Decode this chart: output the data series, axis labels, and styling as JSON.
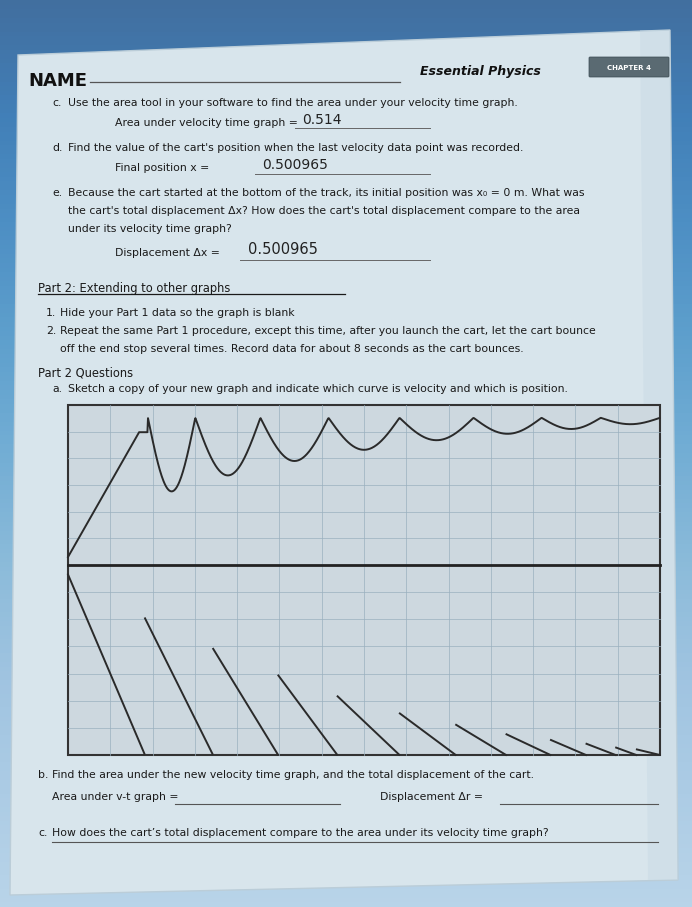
{
  "bg_top_color": "#7baed4",
  "bg_bot_color": "#a8c8e0",
  "paper_color": "#dde8ee",
  "paper_shadow": "#b0c0cc",
  "text_color": "#1a1a1a",
  "handwriting_color": "#222222",
  "grid_color": "#9ab0be",
  "graph_line_color": "#2a2a2a",
  "name_label": "NAME",
  "header_italic": "Essential Physics",
  "chapter_box": "CHAPTER 4",
  "c_label": "c.",
  "c_text": "Use the area tool in your software to find the area under your velocity time graph.",
  "c_answer_label": "Area under velocity time graph =",
  "c_answer": "0.514",
  "d_label": "d.",
  "d_text": "Find the value of the cart's position when the last velocity data point was recorded.",
  "d_answer_label": "Final position x =",
  "d_answer": "0.500965",
  "e_label": "e.",
  "e_text1": "Because the cart started at the bottom of the track, its initial position was x₀ = 0 m. What was",
  "e_text2": "the cart's total displacement Δx? How does the cart's total displacement compare to the area",
  "e_text3": "under its velocity time graph?",
  "e_answer_label": "Displacement Δx =",
  "e_answer": "0.500965",
  "part2_header": "Part 2: Extending to other graphs",
  "step1": "Hide your Part 1 data so the graph is blank",
  "step2_a": "Repeat the same Part 1 procedure, except this time, after you launch the cart, let the cart bounce",
  "step2_b": "off the end stop several times. Record data for about 8 seconds as the cart bounces.",
  "part2q_header": "Part 2 Questions",
  "qa_label": "a.",
  "qa_text": "Sketch a copy of your new graph and indicate which curve is velocity and which is position.",
  "qb_label": "b.",
  "qb_text": "Find the area under the new velocity time graph, and the total displacement of the cart.",
  "qb_area_label": "Area under v-t graph =",
  "qb_disp_label": "Displacement Δr =",
  "qc_label": "c.",
  "qc_text": "How does the cart’s total displacement compare to the area under its velocity time graph?"
}
